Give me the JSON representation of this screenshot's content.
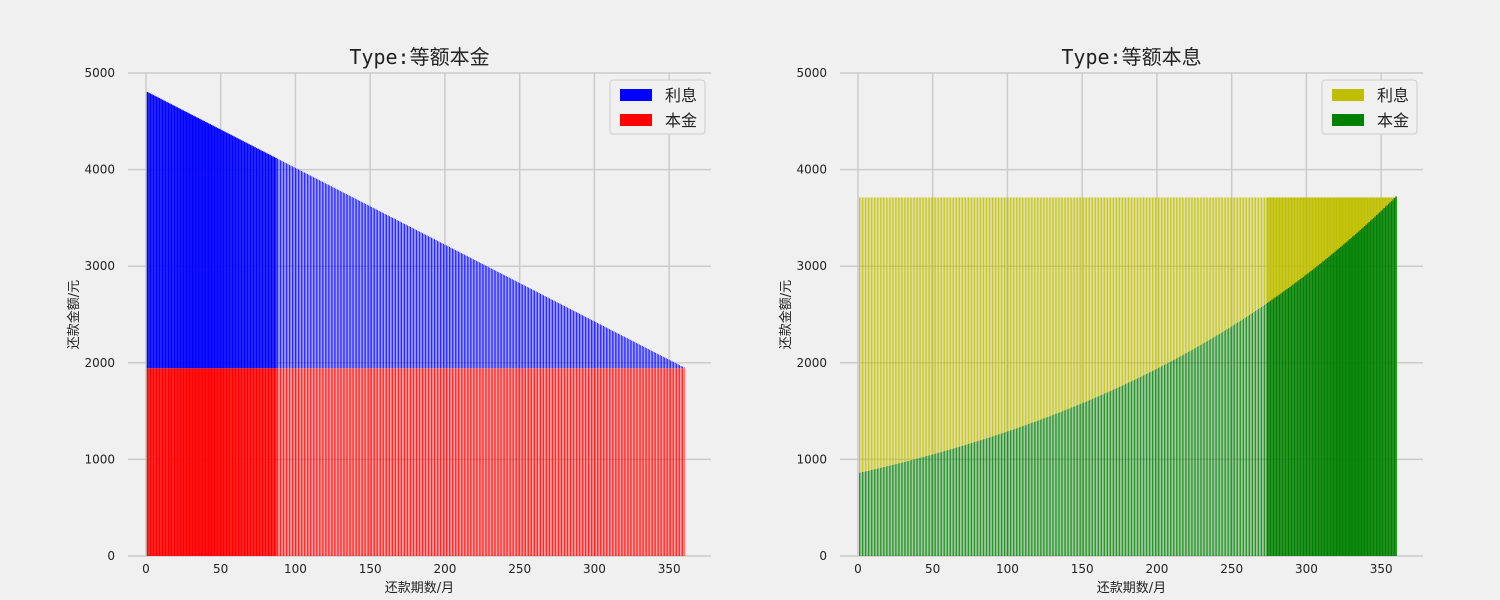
{
  "chart_data": [
    {
      "type": "bar",
      "stacked": true,
      "title": "Type:等额本金",
      "xlabel": "还款期数/月",
      "ylabel": "还款金额/元",
      "xlim": [
        -12,
        378
      ],
      "ylim": [
        0,
        5000
      ],
      "xticks": [
        0,
        50,
        100,
        150,
        200,
        250,
        300,
        350
      ],
      "yticks": [
        0,
        1000,
        2000,
        3000,
        4000,
        5000
      ],
      "grid": true,
      "legend": "top-right",
      "periods": {
        "start": 1,
        "end": 360
      },
      "series": [
        {
          "name": "利息",
          "color": "#0000ff",
          "kind": "linear",
          "first": 2860,
          "last": 8
        },
        {
          "name": "本金",
          "color": "#ff0000",
          "kind": "constant",
          "value": 1944
        }
      ],
      "dense_range": [
        1,
        87
      ]
    },
    {
      "type": "bar",
      "stacked": true,
      "title": "Type:等额本息",
      "xlabel": "还款期数/月",
      "ylabel": "还款金额/元",
      "xlim": [
        -12,
        378
      ],
      "ylim": [
        0,
        5000
      ],
      "xticks": [
        0,
        50,
        100,
        150,
        200,
        250,
        300,
        350
      ],
      "yticks": [
        0,
        1000,
        2000,
        3000,
        4000,
        5000
      ],
      "grid": true,
      "legend": "top-right",
      "periods": {
        "start": 1,
        "end": 360
      },
      "series": [
        {
          "name": "利息",
          "color": "#bfbf00",
          "kind": "annuity_interest",
          "payment": 3712
        },
        {
          "name": "本金",
          "color": "#008000",
          "kind": "annuity_principal",
          "first": 862,
          "growth": 0.0040833
        }
      ],
      "dense_range": [
        274,
        360
      ]
    }
  ]
}
